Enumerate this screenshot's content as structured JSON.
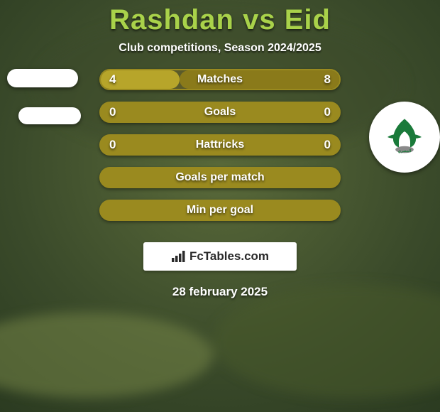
{
  "title": "Rashdan vs Eid",
  "title_color": "#a9d24a",
  "subtitle": "Club competitions, Season 2024/2025",
  "background": {
    "top_color": "#3a5a3a",
    "bottom_color": "#6a7a4a",
    "overlay_opacity": 0.0
  },
  "avatars": {
    "left_placeholder": true,
    "right_crest_bg": "#ffffff",
    "right_crest_primary": "#1a7a3a",
    "right_crest_secondary": "#8a8a8a"
  },
  "bars": [
    {
      "label": "Matches",
      "left": "4",
      "right": "8",
      "left_fill_pct": 33,
      "right_fill_pct": 67,
      "border_color": "#9a8a1f",
      "left_color": "#b7a52a",
      "right_color": "#8a7a1a"
    },
    {
      "label": "Goals",
      "left": "0",
      "right": "0",
      "left_fill_pct": 0,
      "right_fill_pct": 0,
      "border_color": "#9a8a1f",
      "left_color": "#b7a52a",
      "right_color": "#8a7a1a"
    },
    {
      "label": "Hattricks",
      "left": "0",
      "right": "0",
      "left_fill_pct": 0,
      "right_fill_pct": 0,
      "border_color": "#9a8a1f",
      "left_color": "#b7a52a",
      "right_color": "#8a7a1a"
    },
    {
      "label": "Goals per match",
      "left": "",
      "right": "",
      "left_fill_pct": 0,
      "right_fill_pct": 0,
      "border_color": "#9a8a1f",
      "left_color": "#b7a52a",
      "right_color": "#8a7a1a"
    },
    {
      "label": "Min per goal",
      "left": "",
      "right": "",
      "left_fill_pct": 0,
      "right_fill_pct": 0,
      "border_color": "#9a8a1f",
      "left_color": "#b7a52a",
      "right_color": "#8a7a1a"
    }
  ],
  "bar_track_color": "#5a5a2a",
  "watermark": "FcTables.com",
  "date": "28 february 2025",
  "text_shadow": "0 2px 3px rgba(0,0,0,0.6)"
}
